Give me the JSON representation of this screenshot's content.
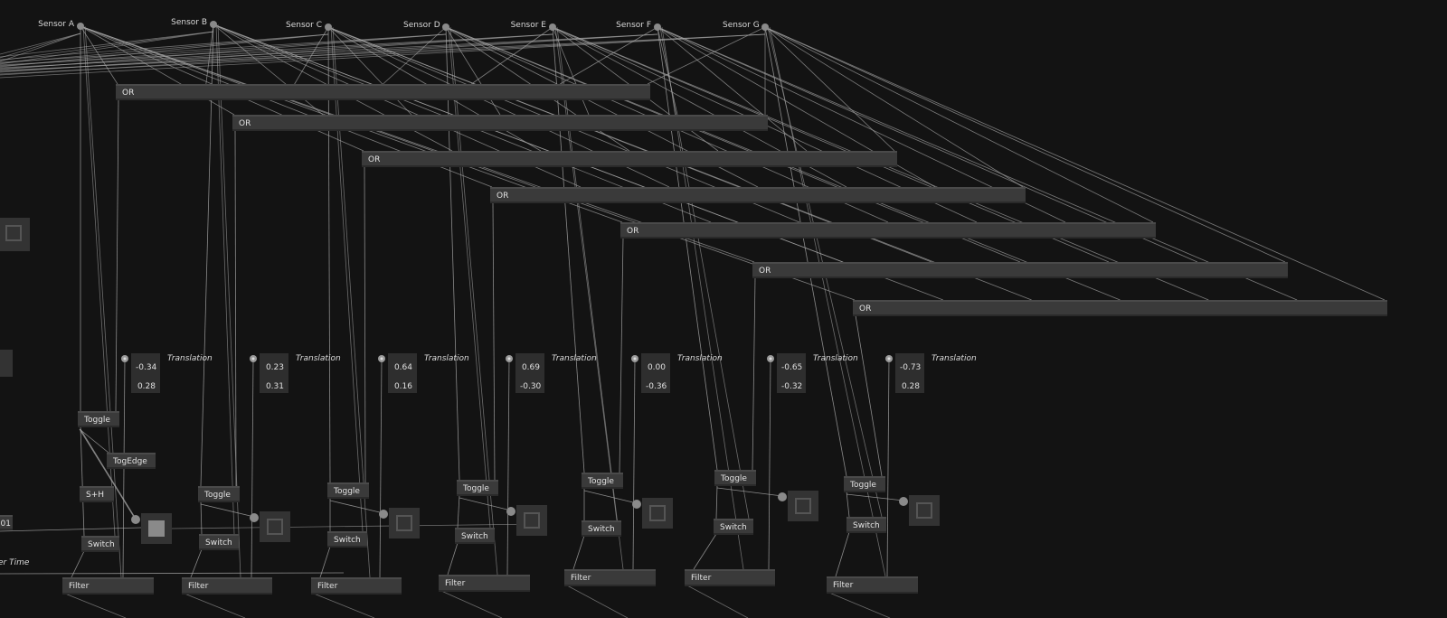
{
  "sensors": [
    "Sensor A",
    "Sensor B",
    "Sensor C",
    "Sensor D",
    "Sensor E",
    "Sensor F",
    "Sensor G"
  ],
  "or_nodes": [
    "OR",
    "OR",
    "OR",
    "OR",
    "OR",
    "OR",
    "OR"
  ],
  "translation_label": "Translation",
  "columns": [
    {
      "x": "-0.34",
      "y": "0.28",
      "toggle": "Toggle",
      "togedge": "TogEdge",
      "sh": "S+H",
      "switch": "Switch",
      "filter": "Filter",
      "toggle_state": true
    },
    {
      "x": "0.23",
      "y": "0.31",
      "toggle": "Toggle",
      "switch": "Switch",
      "filter": "Filter",
      "toggle_state": false
    },
    {
      "x": "0.64",
      "y": "0.16",
      "toggle": "Toggle",
      "switch": "Switch",
      "filter": "Filter",
      "toggle_state": false
    },
    {
      "x": "0.69",
      "y": "-0.30",
      "toggle": "Toggle",
      "switch": "Switch",
      "filter": "Filter",
      "toggle_state": false
    },
    {
      "x": "0.00",
      "y": "-0.36",
      "toggle": "Toggle",
      "switch": "Switch",
      "filter": "Filter",
      "toggle_state": false
    },
    {
      "x": "-0.65",
      "y": "-0.32",
      "toggle": "Toggle",
      "switch": "Switch",
      "filter": "Filter",
      "toggle_state": false
    },
    {
      "x": "-0.73",
      "y": "0.28",
      "toggle": "Toggle",
      "switch": "Switch",
      "filter": "Filter",
      "toggle_state": false
    }
  ],
  "left_edge": {
    "value_fragment": "01",
    "label_fragment": "er Time"
  },
  "colors": {
    "background": "#131313",
    "node": "#3a3a3a",
    "link": "#a0a0a0"
  }
}
